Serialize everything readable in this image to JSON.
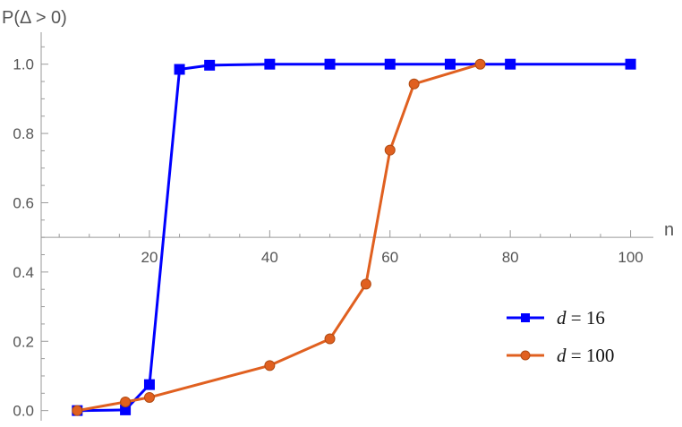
{
  "chart_data": {
    "type": "line",
    "title": "",
    "xlabel": "n",
    "ylabel": "P(Δ > 0)",
    "xlim": [
      2,
      102
    ],
    "ylim": [
      -0.05,
      1.1
    ],
    "x_axis_crosses_y": 0.5,
    "x_ticks": [
      20,
      40,
      60,
      80,
      100
    ],
    "y_ticks": [
      0.0,
      0.2,
      0.4,
      0.6,
      0.8,
      1.0
    ],
    "x_tick_labels": [
      "20",
      "40",
      "60",
      "80",
      "100"
    ],
    "y_tick_labels": [
      "0.0",
      "0.2",
      "0.4",
      "0.6",
      "0.8",
      "1.0"
    ],
    "legend_position": "right",
    "series": [
      {
        "name": "d = 16",
        "legend_var": "d",
        "legend_value": "= 16",
        "color": "#0000ff",
        "marker": "square",
        "x": [
          8,
          16,
          20,
          25,
          30,
          40,
          50,
          60,
          70,
          80,
          100
        ],
        "y": [
          0.0,
          0.002,
          0.075,
          0.985,
          0.997,
          1.0,
          1.0,
          1.0,
          1.0,
          1.0,
          1.0
        ]
      },
      {
        "name": "d = 100",
        "legend_var": "d",
        "legend_value": "= 100",
        "color": "#e06020",
        "marker": "circle",
        "x": [
          8,
          16,
          20,
          40,
          50,
          56,
          60,
          64,
          75
        ],
        "y": [
          0.0,
          0.025,
          0.038,
          0.13,
          0.207,
          0.365,
          0.752,
          0.943,
          1.0
        ]
      }
    ]
  }
}
